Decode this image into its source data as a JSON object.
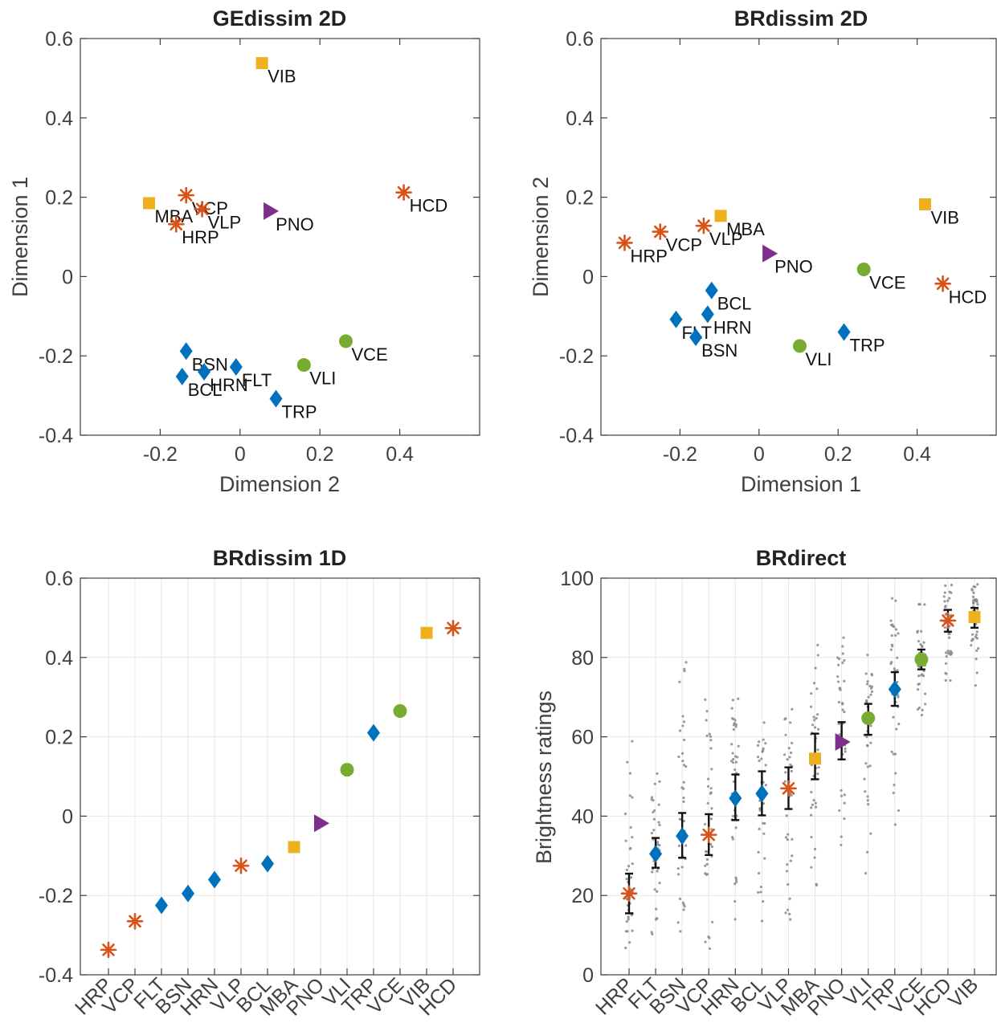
{
  "colors": {
    "star": "#D95319",
    "diamond": "#0072BD",
    "square": "#EDB120",
    "circle": "#77AC30",
    "triangle": "#7E2F8E",
    "errorbar": "#111111",
    "dots": "#888888",
    "axis": "#404040",
    "grid": "#e6e6e6"
  },
  "chart_data": [
    {
      "type": "scatter",
      "title": "GEdissim 2D",
      "xlabel": "Dimension 2",
      "ylabel": "Dimension 1",
      "xlim": [
        -0.4,
        0.6
      ],
      "ylim": [
        -0.4,
        0.6
      ],
      "xticks": [
        "-0.2",
        "0",
        "0.2",
        "0.4"
      ],
      "yticks": [
        "-0.4",
        "-0.2",
        "0",
        "0.2",
        "0.4",
        "0.6"
      ],
      "grid": false,
      "points": [
        {
          "label": "VIB",
          "x": 0.055,
          "y": 0.538,
          "marker": "square"
        },
        {
          "label": "MBA",
          "x": -0.228,
          "y": 0.185,
          "marker": "square"
        },
        {
          "label": "VCP",
          "x": -0.135,
          "y": 0.205,
          "marker": "star"
        },
        {
          "label": "VLP",
          "x": -0.095,
          "y": 0.17,
          "marker": "star"
        },
        {
          "label": "HRP",
          "x": -0.16,
          "y": 0.132,
          "marker": "star"
        },
        {
          "label": "PNO",
          "x": 0.075,
          "y": 0.165,
          "marker": "triangle"
        },
        {
          "label": "HCD",
          "x": 0.41,
          "y": 0.212,
          "marker": "star"
        },
        {
          "label": "VCE",
          "x": 0.265,
          "y": -0.163,
          "marker": "circle"
        },
        {
          "label": "VLI",
          "x": 0.16,
          "y": -0.223,
          "marker": "circle"
        },
        {
          "label": "BSN",
          "x": -0.135,
          "y": -0.188,
          "marker": "diamond"
        },
        {
          "label": "BCL",
          "x": -0.145,
          "y": -0.252,
          "marker": "diamond"
        },
        {
          "label": "HRN",
          "x": -0.09,
          "y": -0.24,
          "marker": "diamond"
        },
        {
          "label": "FLT",
          "x": -0.01,
          "y": -0.228,
          "marker": "diamond"
        },
        {
          "label": "TRP",
          "x": 0.09,
          "y": -0.308,
          "marker": "diamond"
        }
      ]
    },
    {
      "type": "scatter",
      "title": "BRdissim 2D",
      "xlabel": "Dimension 1",
      "ylabel": "Dimension 2",
      "xlim": [
        -0.4,
        0.6
      ],
      "ylim": [
        -0.4,
        0.6
      ],
      "xticks": [
        "-0.2",
        "0",
        "0.2",
        "0.4"
      ],
      "yticks": [
        "-0.4",
        "-0.2",
        "0",
        "0.2",
        "0.4",
        "0.6"
      ],
      "grid": false,
      "points": [
        {
          "label": "VIB",
          "x": 0.42,
          "y": 0.182,
          "marker": "square"
        },
        {
          "label": "MBA",
          "x": -0.097,
          "y": 0.153,
          "marker": "square"
        },
        {
          "label": "VLP",
          "x": -0.14,
          "y": 0.128,
          "marker": "star"
        },
        {
          "label": "VCP",
          "x": -0.25,
          "y": 0.113,
          "marker": "star"
        },
        {
          "label": "HRP",
          "x": -0.34,
          "y": 0.085,
          "marker": "star"
        },
        {
          "label": "PNO",
          "x": 0.025,
          "y": 0.058,
          "marker": "triangle"
        },
        {
          "label": "VCE",
          "x": 0.265,
          "y": 0.018,
          "marker": "circle"
        },
        {
          "label": "HCD",
          "x": 0.465,
          "y": -0.018,
          "marker": "star"
        },
        {
          "label": "BCL",
          "x": -0.12,
          "y": -0.035,
          "marker": "diamond"
        },
        {
          "label": "HRN",
          "x": -0.13,
          "y": -0.095,
          "marker": "diamond"
        },
        {
          "label": "FLT",
          "x": -0.21,
          "y": -0.108,
          "marker": "diamond"
        },
        {
          "label": "BSN",
          "x": -0.16,
          "y": -0.153,
          "marker": "diamond"
        },
        {
          "label": "TRP",
          "x": 0.215,
          "y": -0.14,
          "marker": "diamond"
        },
        {
          "label": "VLI",
          "x": 0.103,
          "y": -0.175,
          "marker": "circle"
        }
      ]
    },
    {
      "type": "scatter",
      "title": "BRdissim 1D",
      "ylim": [
        -0.4,
        0.6
      ],
      "yticks": [
        "-0.4",
        "-0.2",
        "0",
        "0.2",
        "0.4",
        "0.6"
      ],
      "grid": true,
      "categories": [
        "HRP",
        "VCP",
        "FLT",
        "BSN",
        "HRN",
        "VLP",
        "BCL",
        "MBA",
        "PNO",
        "VLI",
        "TRP",
        "VCE",
        "VIB",
        "HCD"
      ],
      "values": [
        -0.337,
        -0.265,
        -0.225,
        -0.195,
        -0.16,
        -0.125,
        -0.12,
        -0.078,
        -0.018,
        0.117,
        0.21,
        0.265,
        0.462,
        0.474
      ],
      "markers": [
        "star",
        "star",
        "diamond",
        "diamond",
        "diamond",
        "star",
        "diamond",
        "square",
        "triangle",
        "circle",
        "diamond",
        "circle",
        "square",
        "star"
      ]
    },
    {
      "type": "scatter",
      "title": "BRdirect",
      "ylabel": "Brightness ratings",
      "ylim": [
        0,
        100
      ],
      "yticks": [
        "0",
        "20",
        "40",
        "60",
        "80",
        "100"
      ],
      "grid": true,
      "categories": [
        "HRP",
        "FLT",
        "BSN",
        "VCP",
        "HRN",
        "BCL",
        "VLP",
        "MBA",
        "PNO",
        "VLI",
        "TRP",
        "VCE",
        "HCD",
        "VIB"
      ],
      "means": [
        20.5,
        30.5,
        35,
        35.3,
        44.5,
        45.7,
        47,
        54.5,
        58.7,
        64.7,
        72,
        79.5,
        89.3,
        90.2
      ],
      "err_low": [
        15.5,
        27,
        29.5,
        30.2,
        39,
        40.2,
        41.8,
        49.3,
        54.3,
        60.5,
        67.8,
        77,
        86.5,
        87.5
      ],
      "err_high": [
        25.5,
        34.5,
        40.8,
        40.5,
        50.5,
        51.3,
        52.3,
        60.8,
        63.7,
        68.3,
        76.3,
        82,
        92,
        92.5
      ],
      "markers": [
        "star",
        "diamond",
        "diamond",
        "star",
        "diamond",
        "diamond",
        "star",
        "square",
        "triangle",
        "circle",
        "diamond",
        "circle",
        "star",
        "square"
      ],
      "spread_low": [
        2,
        6,
        3,
        2,
        6,
        8,
        6,
        21,
        27,
        19,
        32,
        63,
        68,
        65
      ],
      "spread_high": [
        70,
        55,
        95,
        73,
        81,
        70,
        75,
        88,
        93,
        87,
        100,
        97,
        100,
        100
      ]
    }
  ]
}
